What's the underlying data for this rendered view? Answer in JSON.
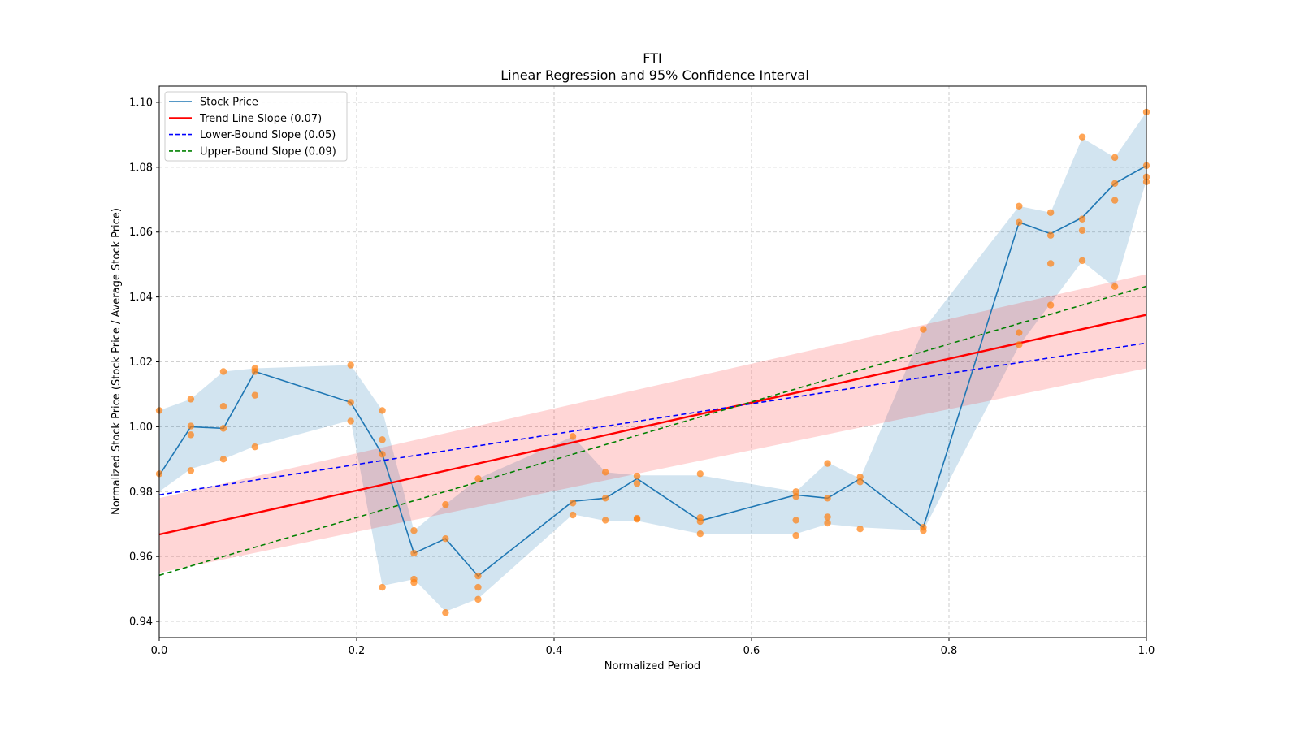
{
  "chart_data": {
    "type": "line",
    "title": "FTI",
    "subtitle": "Linear Regression and 95% Confidence Interval",
    "xlabel": "Normalized Period",
    "ylabel": "Normalized Stock Price (Stock Price / Average Stock Price)",
    "xlim": [
      0.0,
      1.0
    ],
    "ylim": [
      0.935,
      1.105
    ],
    "xticks": [
      0.0,
      0.2,
      0.4,
      0.6,
      0.8,
      1.0
    ],
    "xtick_labels": [
      "0.0",
      "0.2",
      "0.4",
      "0.6",
      "0.8",
      "1.0"
    ],
    "yticks": [
      0.94,
      0.96,
      0.98,
      1.0,
      1.02,
      1.04,
      1.06,
      1.08,
      1.1
    ],
    "ytick_labels": [
      "0.94",
      "0.96",
      "0.98",
      "1.00",
      "1.02",
      "1.04",
      "1.06",
      "1.08",
      "1.10"
    ],
    "grid": true,
    "legend_position": "top-left",
    "colors": {
      "stock": "#1f77b4",
      "stock_band": "#1f77b4",
      "scatter": "#ff7f0e",
      "trend": "#ff0000",
      "trend_band": "#ff0000",
      "lower": "#0000ff",
      "upper": "#008000",
      "grid": "#b0b0b0"
    },
    "legend": [
      {
        "label": "Stock Price",
        "key": "stock",
        "style": "solid"
      },
      {
        "label": "Trend Line Slope (0.07)",
        "key": "trend",
        "style": "solid"
      },
      {
        "label": "Lower-Bound Slope (0.05)",
        "key": "lower",
        "style": "dashed"
      },
      {
        "label": "Upper-Bound Slope (0.09)",
        "key": "upper",
        "style": "dashed"
      }
    ],
    "stock_price": {
      "name": "Stock Price",
      "x": [
        0.0,
        0.032,
        0.065,
        0.097,
        0.194,
        0.226,
        0.258,
        0.29,
        0.323,
        0.419,
        0.452,
        0.484,
        0.548,
        0.645,
        0.677,
        0.71,
        0.774,
        0.871,
        0.903,
        0.935,
        0.968,
        1.0
      ],
      "y": [
        0.985,
        1.0,
        0.9995,
        1.017,
        1.0075,
        0.9915,
        0.961,
        0.9655,
        0.954,
        0.977,
        0.978,
        0.984,
        0.971,
        0.979,
        0.978,
        0.984,
        0.969,
        1.063,
        1.0595,
        1.0645,
        1.075,
        1.0805
      ],
      "band_lower": [
        0.98,
        0.987,
        0.99,
        0.994,
        1.002,
        0.951,
        0.953,
        0.943,
        0.947,
        0.973,
        0.971,
        0.971,
        0.967,
        0.967,
        0.97,
        0.969,
        0.968,
        1.025,
        1.038,
        1.051,
        1.043,
        1.076
      ],
      "band_upper": [
        1.005,
        1.0085,
        1.017,
        1.018,
        1.019,
        1.005,
        0.968,
        0.976,
        0.984,
        0.997,
        0.986,
        0.985,
        0.985,
        0.98,
        0.989,
        0.984,
        1.03,
        1.068,
        1.066,
        1.089,
        1.083,
        1.097
      ]
    },
    "scatter_points": {
      "x": [
        0.0,
        0.0,
        0.032,
        0.032,
        0.032,
        0.032,
        0.065,
        0.065,
        0.065,
        0.065,
        0.097,
        0.097,
        0.097,
        0.097,
        0.194,
        0.194,
        0.194,
        0.226,
        0.226,
        0.226,
        0.226,
        0.258,
        0.258,
        0.258,
        0.258,
        0.29,
        0.29,
        0.29,
        0.323,
        0.323,
        0.323,
        0.323,
        0.419,
        0.419,
        0.419,
        0.452,
        0.452,
        0.452,
        0.484,
        0.484,
        0.484,
        0.484,
        0.548,
        0.548,
        0.548,
        0.548,
        0.645,
        0.645,
        0.645,
        0.645,
        0.677,
        0.677,
        0.677,
        0.677,
        0.71,
        0.71,
        0.71,
        0.774,
        0.774,
        0.774,
        0.871,
        0.871,
        0.871,
        0.871,
        0.903,
        0.903,
        0.903,
        0.903,
        0.935,
        0.935,
        0.935,
        0.935,
        0.968,
        0.968,
        0.968,
        0.968,
        1.0,
        1.0,
        1.0,
        1.0
      ],
      "y": [
        1.005,
        0.9855,
        1.0085,
        1.0002,
        0.9975,
        0.9865,
        1.017,
        1.0063,
        0.9995,
        0.99,
        1.018,
        1.017,
        1.0097,
        0.9938,
        1.019,
        1.0075,
        1.0017,
        1.005,
        0.996,
        0.9915,
        0.9505,
        0.968,
        0.961,
        0.953,
        0.952,
        0.976,
        0.9655,
        0.9427,
        0.984,
        0.954,
        0.9505,
        0.9468,
        0.997,
        0.9765,
        0.9728,
        0.986,
        0.978,
        0.9712,
        0.9848,
        0.9825,
        0.9718,
        0.9715,
        0.9855,
        0.972,
        0.9708,
        0.967,
        0.98,
        0.9785,
        0.9712,
        0.9665,
        0.9887,
        0.978,
        0.9722,
        0.9703,
        0.9845,
        0.983,
        0.9685,
        1.03,
        0.969,
        0.968,
        1.068,
        1.063,
        1.029,
        1.0253,
        1.066,
        1.059,
        1.0503,
        1.0375,
        1.0893,
        1.064,
        1.0605,
        1.0512,
        1.083,
        1.075,
        1.0698,
        1.0432,
        1.097,
        1.0805,
        1.077,
        1.0755
      ]
    },
    "trend_line": {
      "name": "Trend Line Slope (0.07)",
      "slope": 0.07,
      "x": [
        0.0,
        1.0
      ],
      "y": [
        0.9668,
        1.0345
      ],
      "band_lower": [
        0.955,
        1.018
      ],
      "band_upper": [
        0.978,
        1.047
      ]
    },
    "lower_bound": {
      "name": "Lower-Bound Slope (0.05)",
      "slope": 0.05,
      "x": [
        0.0,
        1.0
      ],
      "y": [
        0.979,
        1.0258
      ]
    },
    "upper_bound": {
      "name": "Upper-Bound Slope (0.09)",
      "slope": 0.09,
      "x": [
        0.0,
        1.0
      ],
      "y": [
        0.9542,
        1.0433
      ]
    }
  }
}
